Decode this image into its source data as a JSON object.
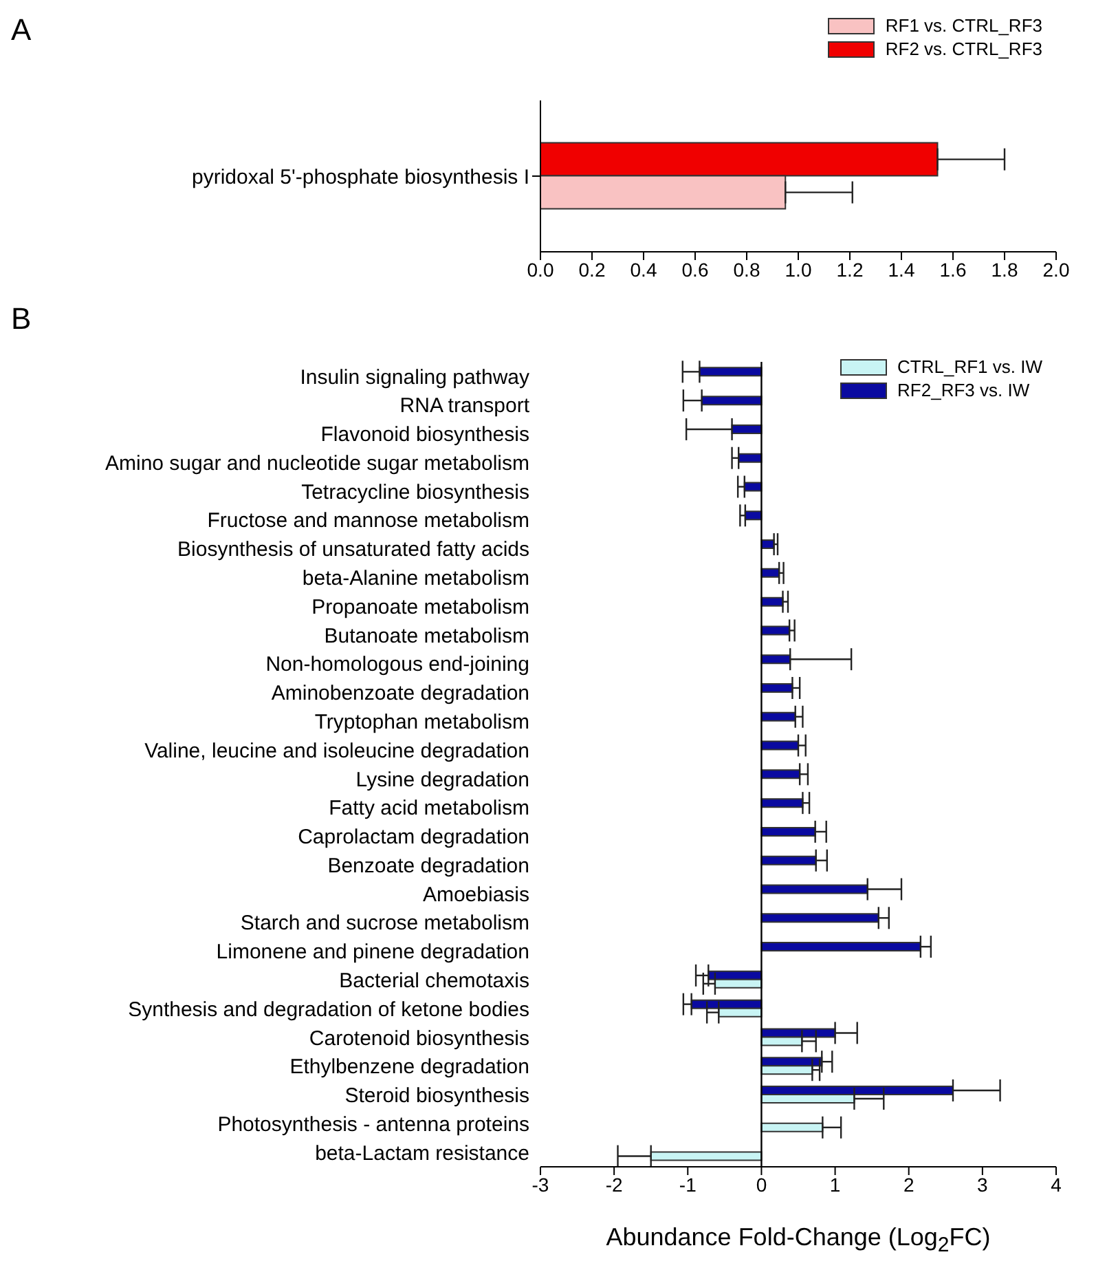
{
  "chart_data": [
    {
      "type": "bar",
      "orientation": "horizontal",
      "title": "A",
      "categories": [
        "pyridoxal 5'-phosphate biosynthesis I"
      ],
      "series": [
        {
          "name": "RF1 vs. CTRL_RF3",
          "color": "#f9c2c2",
          "values": [
            0.95
          ],
          "errors": [
            0.26
          ]
        },
        {
          "name": "RF2 vs. CTRL_RF3",
          "color": "#f00000",
          "values": [
            1.54
          ],
          "errors": [
            0.26
          ]
        }
      ],
      "xlim": [
        0,
        2
      ],
      "xticks": [
        {
          "value": 0,
          "label": "0.0"
        },
        {
          "value": 0.2,
          "label": "0.2"
        },
        {
          "value": 0.4,
          "label": "0.4"
        },
        {
          "value": 0.6,
          "label": "0.6"
        },
        {
          "value": 0.8,
          "label": "0.8"
        },
        {
          "value": 1,
          "label": "1.0"
        },
        {
          "value": 1.2,
          "label": "1.2"
        },
        {
          "value": 1.4,
          "label": "1.4"
        },
        {
          "value": 1.6,
          "label": "1.6"
        },
        {
          "value": 1.8,
          "label": "1.8"
        },
        {
          "value": 2,
          "label": "2.0"
        }
      ],
      "legend": "top right"
    },
    {
      "type": "bar",
      "orientation": "horizontal",
      "title": "B",
      "xlabel": "Abundance Fold-Change (Log$_{2}$FC)",
      "categories": [
        "Insulin signaling pathway",
        "RNA transport",
        "Flavonoid biosynthesis",
        "Amino sugar and nucleotide sugar metabolism",
        "Tetracycline biosynthesis",
        "Fructose and mannose metabolism",
        "Biosynthesis of unsaturated fatty acids",
        "beta-Alanine metabolism",
        "Propanoate metabolism",
        "Butanoate metabolism",
        "Non-homologous end-joining",
        "Aminobenzoate degradation",
        "Tryptophan metabolism",
        "Valine, leucine and isoleucine degradation",
        "Lysine degradation",
        "Fatty acid metabolism",
        "Caprolactam degradation",
        "Benzoate degradation",
        "Amoebiasis",
        "Starch and sucrose metabolism",
        "Limonene and pinene degradation",
        "Bacterial chemotaxis",
        "Synthesis and degradation of ketone bodies",
        "Carotenoid biosynthesis",
        "Ethylbenzene degradation",
        "Steroid biosynthesis",
        "Photosynthesis - antenna proteins",
        "beta-Lactam resistance"
      ],
      "series": [
        {
          "name": "CTRL_RF1 vs. IW",
          "color": "#c8f4f4",
          "values": [
            null,
            null,
            null,
            null,
            null,
            null,
            null,
            null,
            null,
            null,
            null,
            null,
            null,
            null,
            null,
            null,
            null,
            null,
            null,
            null,
            null,
            -0.63,
            -0.58,
            0.55,
            0.69,
            1.26,
            0.83,
            -1.5
          ],
          "errors": [
            null,
            null,
            null,
            null,
            null,
            null,
            null,
            null,
            null,
            null,
            null,
            null,
            null,
            null,
            null,
            null,
            null,
            null,
            null,
            null,
            null,
            0.16,
            0.16,
            0.19,
            0.1,
            0.4,
            0.25,
            0.45
          ]
        },
        {
          "name": "RF2_RF3 vs. IW",
          "color": "#0a0aa0",
          "values": [
            -0.84,
            -0.81,
            -0.4,
            -0.31,
            -0.23,
            -0.22,
            0.17,
            0.24,
            0.29,
            0.38,
            0.39,
            0.42,
            0.46,
            0.5,
            0.52,
            0.56,
            0.73,
            0.74,
            1.44,
            1.59,
            2.16,
            -0.72,
            -0.95,
            1.0,
            0.82,
            2.6,
            null,
            null
          ],
          "errors": [
            0.23,
            0.25,
            0.62,
            0.09,
            0.09,
            0.07,
            0.05,
            0.06,
            0.07,
            0.07,
            0.83,
            0.1,
            0.1,
            0.1,
            0.11,
            0.09,
            0.15,
            0.15,
            0.46,
            0.14,
            0.14,
            0.17,
            0.11,
            0.3,
            0.14,
            0.64,
            null,
            null
          ]
        }
      ],
      "xlim": [
        -3,
        4
      ],
      "xticks": [
        -3,
        -2,
        -1,
        0,
        1,
        2,
        3,
        4
      ],
      "ref_lines": [
        {
          "axis": "x",
          "value": 0
        }
      ],
      "legend": "top right"
    }
  ]
}
